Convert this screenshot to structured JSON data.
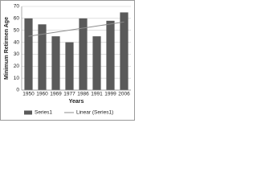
{
  "chart_data": {
    "type": "bar",
    "categories": [
      "1950",
      "1960",
      "1969",
      "1977",
      "1986",
      "1991",
      "1999",
      "2006"
    ],
    "series": [
      {
        "name": "Series1",
        "color": "#5a5a5a",
        "values": [
          60,
          55,
          45,
          40,
          60,
          45,
          58,
          65
        ]
      }
    ],
    "trendline": {
      "name": "Linear (Series1)",
      "color": "#8c8c8c",
      "values": [
        45,
        57
      ]
    },
    "x_label": "Years",
    "y_label": "Minimum Retirmen Age",
    "ylim": [
      0,
      70
    ],
    "yticks": [
      0,
      10,
      20,
      30,
      40,
      50,
      60,
      70
    ],
    "grid": true,
    "legend": "bottom"
  }
}
